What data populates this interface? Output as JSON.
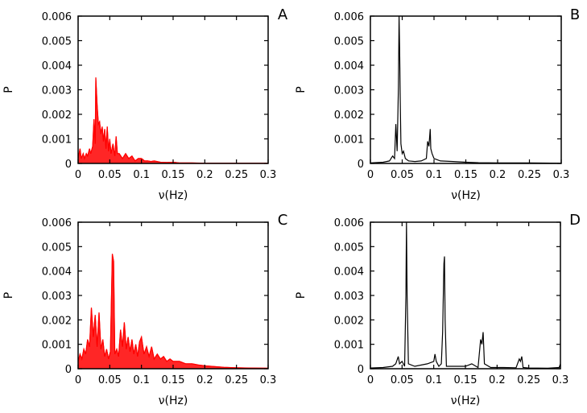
{
  "chart_data": [
    {
      "type": "line",
      "panel_label": "A",
      "color": "#ff0000",
      "xlabel": "ν(Hz)",
      "ylabel": "P",
      "xlim": [
        0,
        0.3
      ],
      "ylim": [
        0,
        0.006
      ],
      "xticks": [
        "0",
        "0.05",
        "0.1",
        "0.15",
        "0.2",
        "0.25",
        "0.3"
      ],
      "yticks": [
        "0",
        "0.001",
        "0.002",
        "0.003",
        "0.004",
        "0.005",
        "0.006"
      ],
      "x": [
        0,
        0.003,
        0.005,
        0.008,
        0.01,
        0.013,
        0.015,
        0.018,
        0.02,
        0.023,
        0.025,
        0.027,
        0.028,
        0.03,
        0.032,
        0.034,
        0.036,
        0.038,
        0.04,
        0.042,
        0.044,
        0.046,
        0.048,
        0.05,
        0.052,
        0.055,
        0.058,
        0.06,
        0.062,
        0.065,
        0.07,
        0.075,
        0.08,
        0.085,
        0.09,
        0.095,
        0.1,
        0.105,
        0.11,
        0.115,
        0.12,
        0.13,
        0.14,
        0.15,
        0.16,
        0.17,
        0.18,
        0.2,
        0.22,
        0.25,
        0.3
      ],
      "y": [
        0.0002,
        0.0006,
        0.0002,
        0.0004,
        0.0002,
        0.0004,
        0.0003,
        0.0006,
        0.0004,
        0.0007,
        0.0018,
        0.0008,
        0.0035,
        0.0024,
        0.0016,
        0.0017,
        0.0012,
        0.0015,
        0.0009,
        0.0014,
        0.0006,
        0.0015,
        0.0005,
        0.001,
        0.0004,
        0.0008,
        0.0003,
        0.0011,
        0.0004,
        0.0004,
        0.0002,
        0.0004,
        0.0002,
        0.0003,
        0.0001,
        0.0002,
        0.0002,
        0.0001,
        0.0001,
        8e-05,
        0.0001,
        5e-05,
        4e-05,
        5e-05,
        2e-05,
        2e-05,
        2e-05,
        1e-05,
        1e-05,
        1e-05,
        1e-05
      ]
    },
    {
      "type": "line",
      "panel_label": "B",
      "color": "#000000",
      "xlabel": "ν(Hz)",
      "ylabel": "P",
      "xlim": [
        0,
        0.3
      ],
      "ylim": [
        0,
        0.006
      ],
      "xticks": [
        "0",
        "0.05",
        "0.1",
        "0.15",
        "0.2",
        "0.25",
        "0.3"
      ],
      "yticks": [
        "0",
        "0.001",
        "0.002",
        "0.003",
        "0.004",
        "0.005",
        "0.006"
      ],
      "x": [
        0,
        0.02,
        0.03,
        0.035,
        0.038,
        0.04,
        0.042,
        0.044,
        0.045,
        0.046,
        0.047,
        0.048,
        0.05,
        0.052,
        0.055,
        0.06,
        0.07,
        0.08,
        0.088,
        0.09,
        0.092,
        0.094,
        0.095,
        0.097,
        0.1,
        0.11,
        0.13,
        0.15,
        0.17,
        0.2,
        0.25,
        0.3
      ],
      "y": [
        2e-05,
        5e-05,
        0.0001,
        0.0003,
        0.0002,
        0.0016,
        0.0005,
        0.0031,
        0.006,
        0.0047,
        0.0025,
        0.0008,
        0.0004,
        0.0005,
        0.0002,
        0.0001,
        8e-05,
        0.0001,
        0.0002,
        0.0009,
        0.0007,
        0.0014,
        0.0006,
        0.0004,
        0.0002,
        0.0001,
        8e-05,
        5e-05,
        3e-05,
        2e-05,
        2e-05,
        1e-05
      ]
    },
    {
      "type": "line",
      "panel_label": "C",
      "color": "#ff0000",
      "xlabel": "ν(Hz)",
      "ylabel": "P",
      "xlim": [
        0,
        0.3
      ],
      "ylim": [
        0,
        0.006
      ],
      "xticks": [
        "0",
        "0.05",
        "0.1",
        "0.15",
        "0.2",
        "0.25",
        "0.3"
      ],
      "yticks": [
        "0",
        "0.001",
        "0.002",
        "0.003",
        "0.004",
        "0.005",
        "0.006"
      ],
      "x": [
        0,
        0.003,
        0.006,
        0.009,
        0.012,
        0.015,
        0.018,
        0.021,
        0.024,
        0.027,
        0.03,
        0.033,
        0.036,
        0.039,
        0.042,
        0.045,
        0.048,
        0.051,
        0.054,
        0.056,
        0.058,
        0.061,
        0.064,
        0.067,
        0.07,
        0.073,
        0.076,
        0.079,
        0.082,
        0.085,
        0.088,
        0.091,
        0.094,
        0.097,
        0.1,
        0.104,
        0.108,
        0.112,
        0.116,
        0.12,
        0.125,
        0.13,
        0.135,
        0.14,
        0.145,
        0.15,
        0.16,
        0.17,
        0.18,
        0.19,
        0.2,
        0.21,
        0.22,
        0.23,
        0.25,
        0.27,
        0.3
      ],
      "y": [
        0.0003,
        0.0006,
        0.0004,
        0.0008,
        0.0006,
        0.0012,
        0.0009,
        0.0025,
        0.0013,
        0.0022,
        0.0009,
        0.0023,
        0.0008,
        0.0012,
        0.0005,
        0.0008,
        0.0004,
        0.0007,
        0.0047,
        0.0044,
        0.0006,
        0.0008,
        0.0005,
        0.0016,
        0.0009,
        0.0019,
        0.0008,
        0.0013,
        0.0007,
        0.0012,
        0.0006,
        0.001,
        0.0005,
        0.0011,
        0.0013,
        0.0006,
        0.0009,
        0.0005,
        0.0009,
        0.0004,
        0.0006,
        0.0004,
        0.0005,
        0.0003,
        0.0004,
        0.0003,
        0.0003,
        0.0002,
        0.0002,
        0.00015,
        0.00012,
        0.0001,
        8e-05,
        6e-05,
        4e-05,
        3e-05,
        2e-05
      ]
    },
    {
      "type": "line",
      "panel_label": "D",
      "color": "#000000",
      "xlabel": "ν(Hz)",
      "ylabel": "P",
      "xlim": [
        0,
        0.3
      ],
      "ylim": [
        0,
        0.006
      ],
      "xticks": [
        "0",
        "0.05",
        "0.1",
        "0.15",
        "0.2",
        "0.25",
        "0.3"
      ],
      "yticks": [
        "0",
        "0.001",
        "0.002",
        "0.003",
        "0.004",
        "0.005",
        "0.006"
      ],
      "x": [
        0,
        0.02,
        0.035,
        0.04,
        0.044,
        0.046,
        0.05,
        0.054,
        0.056,
        0.057,
        0.058,
        0.06,
        0.07,
        0.09,
        0.1,
        0.102,
        0.104,
        0.108,
        0.112,
        0.114,
        0.116,
        0.117,
        0.118,
        0.12,
        0.13,
        0.15,
        0.16,
        0.17,
        0.174,
        0.176,
        0.178,
        0.18,
        0.19,
        0.21,
        0.23,
        0.235,
        0.237,
        0.239,
        0.241,
        0.25,
        0.28,
        0.298,
        0.3
      ],
      "y": [
        3e-05,
        5e-05,
        0.0001,
        0.0002,
        0.0005,
        0.0002,
        0.0003,
        0.0001,
        0.003,
        0.006,
        0.003,
        0.0002,
        0.0001,
        0.0002,
        0.0003,
        0.0006,
        0.0003,
        0.0001,
        0.0002,
        0.0015,
        0.0043,
        0.0046,
        0.002,
        0.0001,
        0.0001,
        0.0001,
        0.0002,
        5e-05,
        0.0012,
        0.001,
        0.0015,
        0.0002,
        5e-05,
        5e-05,
        4e-05,
        0.0004,
        0.0003,
        0.0005,
        5e-05,
        3e-05,
        2e-05,
        5e-05,
        0.0002
      ]
    }
  ]
}
